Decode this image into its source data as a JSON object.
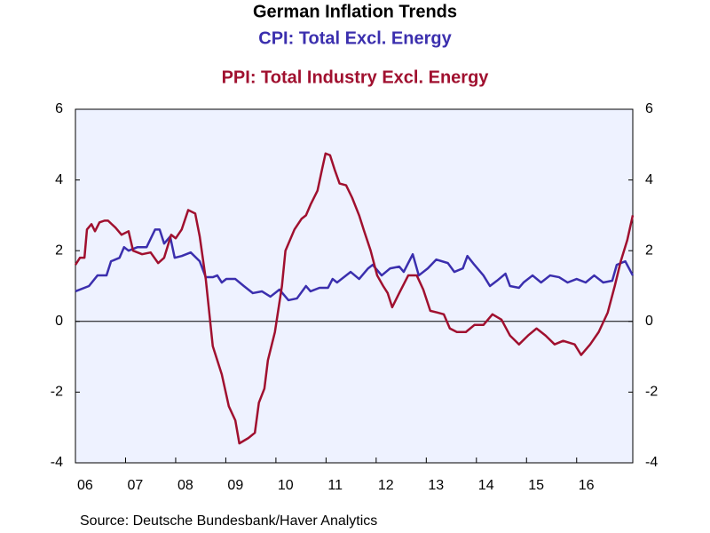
{
  "chart_data": {
    "type": "line",
    "title": "German Inflation Trends",
    "source": "Source:  Deutsche Bundesbank/Haver Analytics",
    "xlim": [
      2006,
      2017.12
    ],
    "xticks": [
      {
        "value": 2006,
        "label": "06"
      },
      {
        "value": 2007,
        "label": "07"
      },
      {
        "value": 2008,
        "label": "08"
      },
      {
        "value": 2009,
        "label": "09"
      },
      {
        "value": 2010,
        "label": "10"
      },
      {
        "value": 2011,
        "label": "11"
      },
      {
        "value": 2012,
        "label": "12"
      },
      {
        "value": 2013,
        "label": "13"
      },
      {
        "value": 2014,
        "label": "14"
      },
      {
        "value": 2015,
        "label": "15"
      },
      {
        "value": 2016,
        "label": "16"
      }
    ],
    "ylim": [
      -4,
      6
    ],
    "yticks": [
      -4,
      -2,
      0,
      2,
      4,
      6
    ],
    "y2lim": [
      -4,
      6
    ],
    "y2ticks": [
      -4,
      -2,
      0,
      2,
      4,
      6
    ],
    "zero_line": true,
    "grid": false,
    "series": [
      {
        "name": "CPI: Total Excl. Energy",
        "color": "#3b2fae",
        "x": [
          2006.0,
          2006.27,
          2006.44,
          2006.62,
          2006.71,
          2006.88,
          2006.97,
          2007.06,
          2007.24,
          2007.42,
          2007.59,
          2007.68,
          2007.77,
          2007.89,
          2007.98,
          2008.12,
          2008.3,
          2008.48,
          2008.6,
          2008.74,
          2008.83,
          2008.92,
          2009.01,
          2009.19,
          2009.36,
          2009.54,
          2009.72,
          2009.89,
          2010.07,
          2010.25,
          2010.42,
          2010.6,
          2010.69,
          2010.87,
          2011.04,
          2011.13,
          2011.22,
          2011.49,
          2011.66,
          2011.84,
          2011.93,
          2012.11,
          2012.28,
          2012.46,
          2012.55,
          2012.64,
          2012.73,
          2012.85,
          2013.03,
          2013.2,
          2013.43,
          2013.56,
          2013.73,
          2013.82,
          2013.96,
          2014.14,
          2014.27,
          2014.41,
          2014.58,
          2014.67,
          2014.85,
          2014.94,
          2015.12,
          2015.29,
          2015.47,
          2015.65,
          2015.82,
          2016.0,
          2016.18,
          2016.35,
          2016.53,
          2016.71,
          2016.8,
          2016.97,
          2017.12
        ],
        "values": [
          0.85,
          1.0,
          1.3,
          1.3,
          1.7,
          1.8,
          2.1,
          2.0,
          2.1,
          2.1,
          2.6,
          2.6,
          2.2,
          2.4,
          1.8,
          1.85,
          1.95,
          1.7,
          1.25,
          1.25,
          1.3,
          1.1,
          1.2,
          1.2,
          1.0,
          0.8,
          0.85,
          0.7,
          0.9,
          0.6,
          0.65,
          1.0,
          0.85,
          0.95,
          0.95,
          1.2,
          1.1,
          1.4,
          1.2,
          1.5,
          1.6,
          1.3,
          1.5,
          1.55,
          1.4,
          1.65,
          1.9,
          1.3,
          1.5,
          1.75,
          1.65,
          1.4,
          1.5,
          1.85,
          1.6,
          1.3,
          1.0,
          1.15,
          1.35,
          1.0,
          0.95,
          1.1,
          1.3,
          1.1,
          1.3,
          1.25,
          1.1,
          1.2,
          1.1,
          1.3,
          1.1,
          1.15,
          1.6,
          1.7,
          1.3
        ]
      },
      {
        "name": "PPI: Total Industry Excl. Energy",
        "color": "#a0102f",
        "x": [
          2006.0,
          2006.09,
          2006.18,
          2006.23,
          2006.32,
          2006.39,
          2006.48,
          2006.58,
          2006.65,
          2006.8,
          2006.92,
          2007.06,
          2007.15,
          2007.33,
          2007.5,
          2007.65,
          2007.77,
          2007.91,
          2008.0,
          2008.12,
          2008.25,
          2008.39,
          2008.48,
          2008.6,
          2008.74,
          2008.92,
          2009.06,
          2009.19,
          2009.27,
          2009.45,
          2009.58,
          2009.66,
          2009.77,
          2009.84,
          2009.98,
          2010.12,
          2010.19,
          2010.37,
          2010.51,
          2010.6,
          2010.69,
          2010.83,
          2010.92,
          2010.99,
          2011.08,
          2011.17,
          2011.27,
          2011.4,
          2011.52,
          2011.66,
          2011.75,
          2011.89,
          2012.02,
          2012.14,
          2012.23,
          2012.32,
          2012.46,
          2012.64,
          2012.81,
          2012.94,
          2013.08,
          2013.22,
          2013.35,
          2013.47,
          2013.61,
          2013.79,
          2013.96,
          2014.14,
          2014.32,
          2014.5,
          2014.67,
          2014.85,
          2015.03,
          2015.2,
          2015.38,
          2015.56,
          2015.73,
          2015.96,
          2016.09,
          2016.27,
          2016.44,
          2016.62,
          2016.76,
          2016.88,
          2017.01,
          2017.12
        ],
        "values": [
          1.6,
          1.8,
          1.8,
          2.6,
          2.75,
          2.55,
          2.8,
          2.85,
          2.85,
          2.65,
          2.45,
          2.55,
          2.0,
          1.9,
          1.95,
          1.65,
          1.8,
          2.45,
          2.35,
          2.6,
          3.15,
          3.05,
          2.4,
          1.2,
          -0.7,
          -1.5,
          -2.4,
          -2.8,
          -3.45,
          -3.3,
          -3.15,
          -2.3,
          -1.9,
          -1.1,
          -0.3,
          1.0,
          2.0,
          2.6,
          2.9,
          3.0,
          3.3,
          3.7,
          4.3,
          4.75,
          4.7,
          4.3,
          3.9,
          3.85,
          3.5,
          3.0,
          2.6,
          2.0,
          1.3,
          1.0,
          0.8,
          0.4,
          0.8,
          1.3,
          1.3,
          0.9,
          0.3,
          0.25,
          0.2,
          -0.2,
          -0.3,
          -0.3,
          -0.1,
          -0.1,
          0.2,
          0.05,
          -0.4,
          -0.65,
          -0.4,
          -0.2,
          -0.4,
          -0.65,
          -0.55,
          -0.65,
          -0.95,
          -0.65,
          -0.3,
          0.25,
          1.0,
          1.7,
          2.3,
          3.0
        ]
      }
    ]
  }
}
